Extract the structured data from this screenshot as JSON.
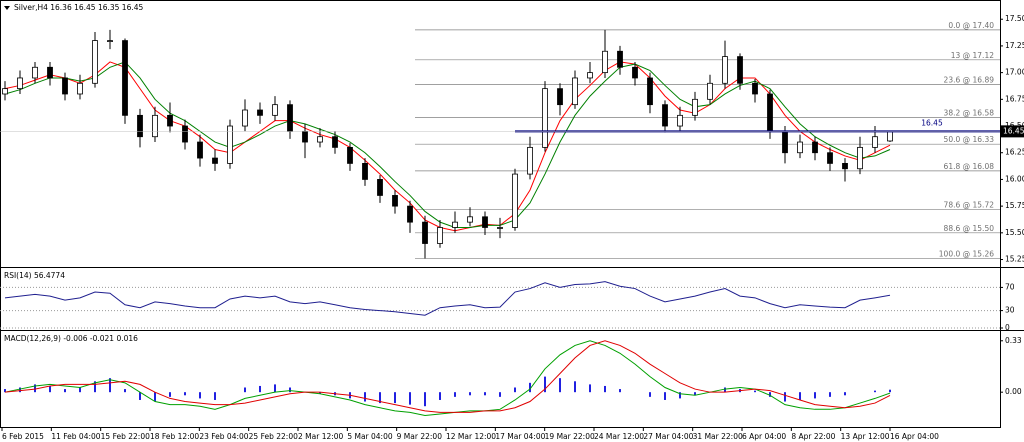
{
  "chart_data": [
    {
      "type": "candlestick",
      "title": "Silver,H4 16.36 16.45 16.35 16.45",
      "ylim": [
        15.18,
        17.68
      ],
      "yticks": [
        15.25,
        {
          "value": 15.5,
          "label": "15.50"
        },
        15.75,
        {
          "value": 16,
          "label": "16.00"
        },
        16.25,
        {
          "value": 16.5,
          "label": "16.50"
        },
        16.75,
        {
          "value": 17,
          "label": "17.00"
        },
        17.25,
        {
          "value": 17.5,
          "label": "17.50"
        }
      ],
      "ohlc": [
        [
          16.8,
          16.92,
          16.74,
          16.85
        ],
        [
          16.85,
          17.02,
          16.8,
          16.95
        ],
        [
          16.95,
          17.1,
          16.9,
          17.05
        ],
        [
          17.05,
          17.1,
          16.88,
          16.95
        ],
        [
          16.95,
          17.0,
          16.74,
          16.8
        ],
        [
          16.8,
          16.98,
          16.75,
          16.9
        ],
        [
          16.9,
          17.38,
          16.86,
          17.3
        ],
        [
          17.3,
          17.4,
          17.22,
          17.3
        ],
        [
          17.3,
          17.32,
          16.52,
          16.6
        ],
        [
          16.6,
          16.66,
          16.3,
          16.4
        ],
        [
          16.4,
          16.68,
          16.35,
          16.6
        ],
        [
          16.6,
          16.72,
          16.44,
          16.5
        ],
        [
          16.5,
          16.56,
          16.28,
          16.35
        ],
        [
          16.35,
          16.42,
          16.12,
          16.2
        ],
        [
          16.2,
          16.28,
          16.08,
          16.15
        ],
        [
          16.15,
          16.56,
          16.1,
          16.5
        ],
        [
          16.5,
          16.75,
          16.45,
          16.65
        ],
        [
          16.65,
          16.72,
          16.52,
          16.6
        ],
        [
          16.6,
          16.78,
          16.55,
          16.7
        ],
        [
          16.7,
          16.74,
          16.38,
          16.45
        ],
        [
          16.45,
          16.52,
          16.2,
          16.35
        ],
        [
          16.35,
          16.48,
          16.3,
          16.4
        ],
        [
          16.4,
          16.45,
          16.24,
          16.3
        ],
        [
          16.3,
          16.34,
          16.08,
          16.15
        ],
        [
          16.15,
          16.2,
          15.94,
          16.0
        ],
        [
          16.0,
          16.04,
          15.78,
          15.85
        ],
        [
          15.85,
          15.9,
          15.68,
          15.75
        ],
        [
          15.75,
          15.8,
          15.5,
          15.6
        ],
        [
          15.6,
          15.66,
          15.26,
          15.4
        ],
        [
          15.4,
          15.62,
          15.36,
          15.55
        ],
        [
          15.55,
          15.7,
          15.5,
          15.6
        ],
        [
          15.6,
          15.74,
          15.56,
          15.65
        ],
        [
          15.65,
          15.7,
          15.48,
          15.55
        ],
        [
          15.55,
          15.64,
          15.45,
          15.55
        ],
        [
          15.55,
          16.1,
          15.52,
          16.05
        ],
        [
          16.05,
          16.4,
          16.0,
          16.3
        ],
        [
          16.3,
          16.92,
          16.26,
          16.85
        ],
        [
          16.85,
          16.9,
          16.6,
          16.7
        ],
        [
          16.7,
          17.02,
          16.66,
          16.95
        ],
        [
          16.95,
          17.1,
          16.9,
          17.0
        ],
        [
          17.0,
          17.4,
          16.95,
          17.2
        ],
        [
          17.2,
          17.25,
          16.98,
          17.05
        ],
        [
          17.05,
          17.1,
          16.88,
          16.95
        ],
        [
          16.95,
          17.0,
          16.62,
          16.7
        ],
        [
          16.7,
          16.74,
          16.44,
          16.5
        ],
        [
          16.5,
          16.68,
          16.45,
          16.6
        ],
        [
          16.6,
          16.82,
          16.55,
          16.75
        ],
        [
          16.75,
          16.98,
          16.7,
          16.9
        ],
        [
          16.9,
          17.3,
          16.85,
          17.15
        ],
        [
          17.15,
          17.18,
          16.84,
          16.9
        ],
        [
          16.9,
          16.94,
          16.72,
          16.8
        ],
        [
          16.8,
          16.84,
          16.38,
          16.45
        ],
        [
          16.45,
          16.5,
          16.15,
          16.25
        ],
        [
          16.25,
          16.42,
          16.2,
          16.35
        ],
        [
          16.35,
          16.4,
          16.18,
          16.25
        ],
        [
          16.25,
          16.3,
          16.08,
          16.15
        ],
        [
          16.15,
          16.2,
          15.98,
          16.1
        ],
        [
          16.1,
          16.4,
          16.05,
          16.3
        ],
        [
          16.3,
          16.5,
          16.25,
          16.4
        ],
        [
          16.36,
          16.45,
          16.35,
          16.45
        ]
      ],
      "series": [
        {
          "color": "#ff0000",
          "values": [
            16.85,
            16.88,
            16.93,
            16.98,
            16.95,
            16.9,
            16.98,
            17.1,
            17.05,
            16.85,
            16.65,
            16.55,
            16.5,
            16.4,
            16.28,
            16.25,
            16.35,
            16.45,
            16.55,
            16.55,
            16.48,
            16.42,
            16.38,
            16.3,
            16.18,
            16.05,
            15.9,
            15.78,
            15.62,
            15.55,
            15.52,
            15.55,
            15.58,
            15.57,
            15.68,
            15.9,
            16.25,
            16.55,
            16.75,
            16.88,
            17.02,
            17.1,
            17.08,
            16.95,
            16.78,
            16.65,
            16.62,
            16.7,
            16.85,
            16.95,
            16.95,
            16.8,
            16.6,
            16.45,
            16.35,
            16.28,
            16.22,
            16.18,
            16.25,
            16.32
          ]
        },
        {
          "color": "#008000",
          "values": [
            16.8,
            16.84,
            16.9,
            16.95,
            16.95,
            16.92,
            16.95,
            17.05,
            17.1,
            16.95,
            16.75,
            16.62,
            16.55,
            16.45,
            16.35,
            16.3,
            16.35,
            16.42,
            16.5,
            16.55,
            16.52,
            16.47,
            16.42,
            16.35,
            16.25,
            16.12,
            15.98,
            15.85,
            15.7,
            15.6,
            15.55,
            15.55,
            15.57,
            15.57,
            15.62,
            15.78,
            16.05,
            16.35,
            16.6,
            16.78,
            16.92,
            17.05,
            17.08,
            17.02,
            16.88,
            16.75,
            16.68,
            16.7,
            16.8,
            16.88,
            16.92,
            16.85,
            16.68,
            16.52,
            16.4,
            16.32,
            16.25,
            16.2,
            16.22,
            16.28
          ]
        }
      ],
      "fib_levels": [
        {
          "value": 17.4,
          "label": "0.0 @ 17.40"
        },
        {
          "value": 17.12,
          "label": "13 @ 17.12"
        },
        {
          "value": 16.89,
          "label": "23.6 @ 16.89"
        },
        {
          "value": 16.58,
          "label": "38.2 @ 16.58"
        },
        {
          "value": 16.33,
          "label": "50.0 @ 16.33"
        },
        {
          "value": 16.08,
          "label": "61.8 @ 16.08"
        },
        {
          "value": 15.72,
          "label": "78.6 @ 15.72"
        },
        {
          "value": 15.5,
          "label": "88.6 @ 15.50"
        },
        {
          "value": 15.26,
          "label": "100.0 @ 15.26"
        }
      ],
      "level": {
        "value": 16.45,
        "label": "16.45",
        "color": "#000080"
      },
      "current_price": {
        "value": 16.45,
        "label": "16.45"
      }
    },
    {
      "type": "line",
      "title": "RSI(14) 56.4774",
      "ylim": [
        0,
        100
      ],
      "yticks": [
        0,
        30,
        70
      ],
      "series": [
        {
          "color": "#1f1f8f",
          "values": [
            52,
            55,
            58,
            55,
            48,
            52,
            62,
            60,
            40,
            35,
            45,
            42,
            38,
            35,
            35,
            50,
            55,
            52,
            55,
            45,
            42,
            45,
            40,
            35,
            32,
            30,
            28,
            25,
            22,
            35,
            38,
            40,
            35,
            36,
            62,
            68,
            78,
            70,
            75,
            76,
            80,
            72,
            68,
            55,
            45,
            50,
            55,
            62,
            68,
            55,
            52,
            42,
            35,
            40,
            38,
            36,
            35,
            48,
            52,
            56.4774
          ]
        }
      ]
    },
    {
      "type": "macd",
      "title": "MACD(12,26,9) -0.006 -0.021 0.016",
      "ylim": [
        -0.23,
        0.38
      ],
      "yticks": [
        {
          "value": 0,
          "label": "0.00"
        },
        0.33
      ],
      "histogram": {
        "color": "#2020e0",
        "values": [
          0.02,
          0.03,
          0.05,
          0.04,
          0.02,
          0.03,
          0.07,
          0.09,
          0.02,
          -0.05,
          -0.06,
          -0.03,
          -0.02,
          -0.04,
          -0.05,
          0.0,
          0.03,
          0.04,
          0.05,
          0.03,
          0.0,
          -0.01,
          -0.02,
          -0.04,
          -0.06,
          -0.07,
          -0.07,
          -0.08,
          -0.09,
          -0.05,
          -0.03,
          -0.02,
          -0.02,
          -0.03,
          0.03,
          0.06,
          0.1,
          0.09,
          0.07,
          0.05,
          0.04,
          0.02,
          0.0,
          -0.03,
          -0.05,
          -0.04,
          -0.02,
          0.0,
          0.03,
          0.02,
          0.01,
          -0.03,
          -0.06,
          -0.05,
          -0.04,
          -0.03,
          -0.02,
          0.0,
          0.01,
          0.016
        ]
      },
      "series": [
        {
          "color": "#00a000",
          "values": [
            0.0,
            0.02,
            0.04,
            0.05,
            0.04,
            0.03,
            0.06,
            0.08,
            0.06,
            0.0,
            -0.06,
            -0.08,
            -0.08,
            -0.09,
            -0.11,
            -0.08,
            -0.04,
            -0.02,
            0.0,
            0.01,
            0.0,
            -0.01,
            -0.03,
            -0.05,
            -0.08,
            -0.1,
            -0.12,
            -0.13,
            -0.15,
            -0.14,
            -0.13,
            -0.12,
            -0.12,
            -0.11,
            -0.05,
            0.02,
            0.15,
            0.24,
            0.3,
            0.33,
            0.3,
            0.25,
            0.18,
            0.1,
            0.03,
            -0.01,
            -0.02,
            0.0,
            0.02,
            0.03,
            0.02,
            -0.02,
            -0.08,
            -0.1,
            -0.11,
            -0.11,
            -0.1,
            -0.07,
            -0.04,
            -0.006
          ]
        },
        {
          "color": "#e00000",
          "values": [
            0.0,
            0.01,
            0.02,
            0.04,
            0.05,
            0.05,
            0.05,
            0.06,
            0.07,
            0.05,
            0.0,
            -0.04,
            -0.06,
            -0.07,
            -0.08,
            -0.08,
            -0.07,
            -0.05,
            -0.03,
            -0.01,
            0.0,
            0.0,
            -0.01,
            -0.02,
            -0.04,
            -0.06,
            -0.08,
            -0.1,
            -0.12,
            -0.13,
            -0.13,
            -0.13,
            -0.12,
            -0.12,
            -0.1,
            -0.06,
            0.02,
            0.12,
            0.22,
            0.3,
            0.33,
            0.3,
            0.25,
            0.18,
            0.12,
            0.06,
            0.02,
            0.0,
            0.0,
            0.01,
            0.02,
            0.01,
            -0.02,
            -0.05,
            -0.08,
            -0.09,
            -0.1,
            -0.09,
            -0.07,
            -0.021
          ]
        }
      ],
      "x_labels": [
        "6 Feb 2015",
        "11 Feb 04:00",
        "15 Feb 22:00",
        "18 Feb 12:00",
        "23 Feb 04:00",
        "25 Feb 22:00",
        "2 Mar 12:00",
        "5 Mar 04:00",
        "9 Mar 22:00",
        "12 Mar 12:00",
        "17 Mar 04:00",
        "19 Mar 22:00",
        "24 Mar 12:00",
        "27 Mar 04:00",
        "31 Mar 22:00",
        "6 Apr 04:00",
        "8 Apr 22:00",
        "13 Apr 12:00",
        "16 Apr 04:00"
      ]
    }
  ]
}
